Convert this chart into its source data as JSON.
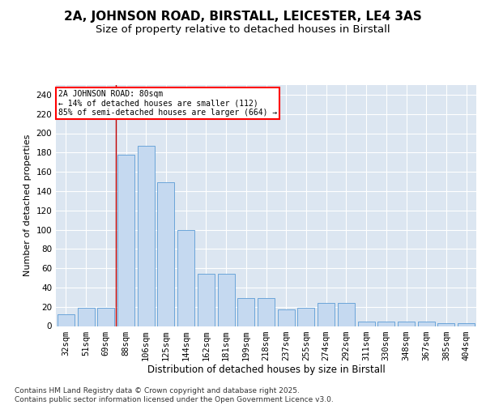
{
  "title1": "2A, JOHNSON ROAD, BIRSTALL, LEICESTER, LE4 3AS",
  "title2": "Size of property relative to detached houses in Birstall",
  "xlabel": "Distribution of detached houses by size in Birstall",
  "ylabel": "Number of detached properties",
  "categories": [
    "32sqm",
    "51sqm",
    "69sqm",
    "88sqm",
    "106sqm",
    "125sqm",
    "144sqm",
    "162sqm",
    "181sqm",
    "199sqm",
    "218sqm",
    "237sqm",
    "255sqm",
    "274sqm",
    "292sqm",
    "311sqm",
    "330sqm",
    "348sqm",
    "367sqm",
    "385sqm",
    "404sqm"
  ],
  "bar_values": [
    12,
    19,
    19,
    178,
    187,
    149,
    100,
    54,
    54,
    29,
    29,
    17,
    19,
    24,
    24,
    5,
    5,
    5,
    5,
    3,
    3
  ],
  "bar_color": "#c5d9f0",
  "bar_edge_color": "#5b9bd5",
  "plot_bg_color": "#dce6f1",
  "annotation_text_line1": "2A JOHNSON ROAD: 80sqm",
  "annotation_text_line2": "← 14% of detached houses are smaller (112)",
  "annotation_text_line3": "85% of semi-detached houses are larger (664) →",
  "vline_color": "#c00000",
  "ylim": [
    0,
    250
  ],
  "yticks": [
    0,
    20,
    40,
    60,
    80,
    100,
    120,
    140,
    160,
    180,
    200,
    220,
    240
  ],
  "footer": "Contains HM Land Registry data © Crown copyright and database right 2025.\nContains public sector information licensed under the Open Government Licence v3.0.",
  "title1_fontsize": 11,
  "title2_fontsize": 9.5,
  "xlabel_fontsize": 8.5,
  "ylabel_fontsize": 8,
  "tick_fontsize": 7.5,
  "footer_fontsize": 6.5,
  "vline_bar_index": 3
}
